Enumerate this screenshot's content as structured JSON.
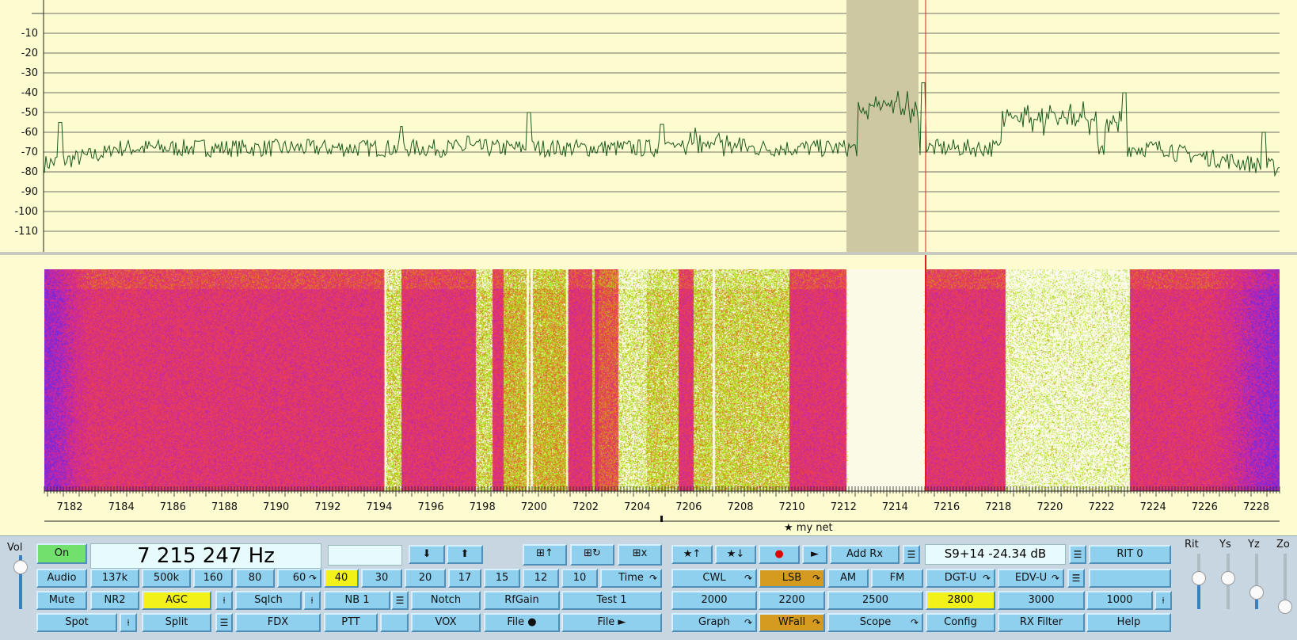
{
  "spectrum": {
    "db_labels": [
      "-10",
      "-20",
      "-30",
      "-40",
      "-50",
      "-60",
      "-70",
      "-80",
      "-90",
      "-100",
      "-110"
    ],
    "trace_color": "#1a5a1a",
    "passband_color": "#cdc7a2",
    "cursor_color": "#e02020"
  },
  "waterfall": {
    "freq_labels": [
      "7182",
      "7184",
      "7186",
      "7188",
      "7190",
      "7192",
      "7194",
      "7196",
      "7198",
      "7200",
      "7202",
      "7204",
      "7206",
      "7208",
      "7210",
      "7212",
      "7214",
      "7216",
      "7218",
      "7220",
      "7222",
      "7224",
      "7226",
      "7228"
    ],
    "marker_label": "★ my net"
  },
  "controls": {
    "vol_label": "Vol",
    "on_label": "On",
    "frequency": "7 215 247 Hz",
    "smeter": "S9+14  -24.34 dB",
    "row1": {
      "down": "⬇",
      "up": "⬆",
      "star_up": "★↑",
      "star_down": "★↓",
      "rec": "●",
      "play": "►",
      "add_rx": "Add Rx",
      "rit": "RIT 0"
    },
    "row2": {
      "audio": "Audio",
      "b137k": "137k",
      "b500k": "500k",
      "b160": "160",
      "b80": "80",
      "b60": "60",
      "b40": "40",
      "b30": "30",
      "b20": "20",
      "b17": "17",
      "b15": "15",
      "b12": "12",
      "b10": "10",
      "time": "Time",
      "cwl": "CWL",
      "lsb": "LSB",
      "am": "AM",
      "fm": "FM",
      "dgtu": "DGT-U",
      "edvu": "EDV-U",
      "blank": ""
    },
    "row3": {
      "mute": "Mute",
      "nr2": "NR2",
      "agc": "AGC",
      "sqlch": "Sqlch",
      "nb1": "NB 1",
      "notch": "Notch",
      "rfgain": "RfGain",
      "test1": "Test 1",
      "f2000": "2000",
      "f2200": "2200",
      "f2500": "2500",
      "f2800": "2800",
      "f3000": "3000",
      "f1000": "1000"
    },
    "row4": {
      "spot": "Spot",
      "split": "Split",
      "fdx": "FDX",
      "ptt": "PTT",
      "vox": "VOX",
      "file_rec": "File ●",
      "file_play": "File ►",
      "graph": "Graph",
      "wfall": "WFall",
      "scope": "Scope",
      "config": "Config",
      "rx_filter": "RX Filter",
      "help": "Help"
    },
    "sliders": {
      "rit": "Rit",
      "ys": "Ys",
      "yz": "Yz",
      "zo": "Zo"
    }
  }
}
